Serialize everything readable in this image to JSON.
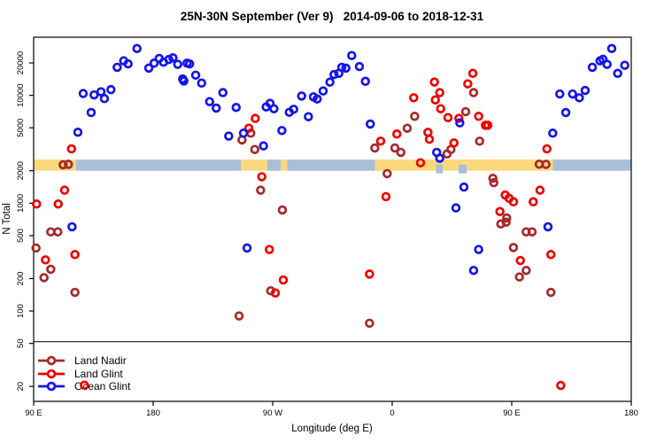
{
  "title": "25N-30N September (Ver 9)   2014-09-06 to 2018-12-31",
  "chart_data": {
    "type": "scatter",
    "title": "25N-30N September (Ver 9)   2014-09-06 to 2018-12-31",
    "xlabel": "Longitude (deg E)",
    "ylabel": "N Total",
    "x_axis": {
      "range_deg_eastward_from_90E": [
        90,
        540
      ],
      "ticks": [
        {
          "value": 90,
          "label": "90 E"
        },
        {
          "value": 180,
          "label": "180"
        },
        {
          "value": 270,
          "label": "90 W"
        },
        {
          "value": 360,
          "label": "0"
        },
        {
          "value": 450,
          "label": "90 E"
        },
        {
          "value": 540,
          "label": "180"
        }
      ]
    },
    "y_axis": {
      "scale": "log",
      "ticks": [
        20,
        50,
        100,
        200,
        500,
        1000,
        2000,
        5000,
        10000,
        20000
      ],
      "visible_range": [
        14,
        34600
      ]
    },
    "separator_value": 52,
    "band": {
      "description": "land-ocean strip along latitude band",
      "value_top": 2540,
      "value_bottom": 2000,
      "land_color": "#FBD87D",
      "ocean_color": "#A9BFD9",
      "segments": [
        {
          "from": 90,
          "to": 122,
          "type": "land"
        },
        {
          "from": 122,
          "to": 246,
          "type": "ocean"
        },
        {
          "from": 246,
          "to": 266,
          "type": "land"
        },
        {
          "from": 266,
          "to": 276,
          "type": "ocean"
        },
        {
          "from": 276,
          "to": 281,
          "type": "land"
        },
        {
          "from": 281,
          "to": 347,
          "type": "ocean"
        },
        {
          "from": 347,
          "to": 481,
          "type": "land"
        },
        {
          "from": 481,
          "to": 540,
          "type": "ocean"
        }
      ],
      "ocean_notches": [
        {
          "from": 393,
          "to": 398
        },
        {
          "from": 410,
          "to": 416
        }
      ]
    },
    "series": [
      {
        "name": "Land Nadir",
        "color": "#A52A2A",
        "points": [
          [
            91.8,
            384
          ],
          [
            97.8,
            204
          ],
          [
            102.9,
            542
          ],
          [
            102.9,
            244
          ],
          [
            108.2,
            542
          ],
          [
            112.2,
            2270
          ],
          [
            116.2,
            2290
          ],
          [
            121.1,
            149
          ],
          [
            244.7,
            90
          ],
          [
            246.9,
            3860
          ],
          [
            253.5,
            4460
          ],
          [
            256.5,
            3150
          ],
          [
            260.9,
            1320
          ],
          [
            268.5,
            154
          ],
          [
            277.3,
            865
          ],
          [
            342.9,
            77
          ],
          [
            346.9,
            3250
          ],
          [
            356.2,
            1880
          ],
          [
            362,
            3250
          ],
          [
            366.5,
            2960
          ],
          [
            371.3,
            4960
          ],
          [
            376.9,
            6390
          ],
          [
            401.3,
            2860
          ],
          [
            404.2,
            3150
          ],
          [
            415.3,
            7060
          ],
          [
            421.3,
            10600
          ],
          [
            425.8,
            3760
          ],
          [
            435.8,
            1700
          ],
          [
            436.5,
            1550
          ],
          [
            441.8,
            642
          ],
          [
            445.8,
            667
          ],
          [
            446.2,
            729
          ],
          [
            451.3,
            388
          ],
          [
            455.8,
            207
          ],
          [
            460.9,
            542
          ],
          [
            465.3,
            542
          ],
          [
            460.9,
            238
          ],
          [
            470.7,
            2300
          ],
          [
            475.8,
            2290
          ],
          [
            479.5,
            149
          ]
        ]
      },
      {
        "name": "Land Glint",
        "color": "#EE0000",
        "points": [
          [
            92.2,
            982
          ],
          [
            98.9,
            298
          ],
          [
            108.5,
            982
          ],
          [
            113.3,
            1320
          ],
          [
            118.5,
            3190
          ],
          [
            121.1,
            334
          ],
          [
            128.2,
            20.5
          ],
          [
            252,
            4960
          ],
          [
            256.9,
            6110
          ],
          [
            261.8,
            1760
          ],
          [
            267.5,
            372
          ],
          [
            272,
            147
          ],
          [
            278,
            194
          ],
          [
            342.9,
            220
          ],
          [
            351.3,
            3760
          ],
          [
            355.3,
            1150
          ],
          [
            363.5,
            4380
          ],
          [
            376.2,
            9500
          ],
          [
            381.3,
            2370
          ],
          [
            386.9,
            4540
          ],
          [
            388,
            3920
          ],
          [
            391.8,
            13300
          ],
          [
            392.5,
            9080
          ],
          [
            395.8,
            10600
          ],
          [
            396.5,
            7520
          ],
          [
            402,
            6220
          ],
          [
            406.5,
            3620
          ],
          [
            410.2,
            6110
          ],
          [
            416.9,
            12800
          ],
          [
            420.7,
            16000
          ],
          [
            425.1,
            6390
          ],
          [
            430.2,
            5280
          ],
          [
            432,
            5280
          ],
          [
            441.1,
            837
          ],
          [
            445.1,
            1190
          ],
          [
            448,
            1110
          ],
          [
            451.3,
            1030
          ],
          [
            456.5,
            294
          ],
          [
            466.2,
            1030
          ],
          [
            471.3,
            1320
          ],
          [
            476.5,
            3190
          ],
          [
            479.5,
            334
          ],
          [
            486.9,
            20.4
          ]
        ]
      },
      {
        "name": "Ocean Glint",
        "color": "#1414EE",
        "points": [
          [
            118.9,
            604
          ],
          [
            123.3,
            4550
          ],
          [
            127.3,
            10400
          ],
          [
            133.3,
            6930
          ],
          [
            135.5,
            10100
          ],
          [
            140.7,
            10800
          ],
          [
            143.3,
            9330
          ],
          [
            148.2,
            11300
          ],
          [
            152.9,
            18200
          ],
          [
            157.8,
            20900
          ],
          [
            161.1,
            19600
          ],
          [
            167.8,
            27200
          ],
          [
            176.7,
            17900
          ],
          [
            180.7,
            19900
          ],
          [
            184.5,
            22000
          ],
          [
            187.8,
            20300
          ],
          [
            191.8,
            21500
          ],
          [
            194.9,
            22300
          ],
          [
            198.5,
            19400
          ],
          [
            202.2,
            14200
          ],
          [
            203.1,
            13600
          ],
          [
            205.5,
            19900
          ],
          [
            207.5,
            19600
          ],
          [
            212,
            15400
          ],
          [
            216.5,
            13000
          ],
          [
            222.5,
            8750
          ],
          [
            227.5,
            7620
          ],
          [
            232.5,
            10600
          ],
          [
            236.9,
            4190
          ],
          [
            242.5,
            7730
          ],
          [
            248,
            4460
          ],
          [
            250.7,
            384
          ],
          [
            263.1,
            3400
          ],
          [
            265.1,
            7810
          ],
          [
            268,
            8430
          ],
          [
            270.9,
            7520
          ],
          [
            276.9,
            4720
          ],
          [
            282.5,
            6970
          ],
          [
            285.8,
            7430
          ],
          [
            291.8,
            9860
          ],
          [
            296.9,
            6340
          ],
          [
            300.7,
            9680
          ],
          [
            303.5,
            9260
          ],
          [
            308,
            10990
          ],
          [
            313.1,
            13270
          ],
          [
            316.2,
            15600
          ],
          [
            319.8,
            16000
          ],
          [
            322,
            18200
          ],
          [
            325.1,
            17900
          ],
          [
            329.5,
            23400
          ],
          [
            335.3,
            18500
          ],
          [
            339.8,
            13500
          ],
          [
            343.5,
            5420
          ],
          [
            393.5,
            2960
          ],
          [
            395.8,
            2610
          ],
          [
            408,
            904
          ],
          [
            410.9,
            5560
          ],
          [
            414,
            1410
          ],
          [
            421.3,
            238
          ],
          [
            425.1,
            372
          ],
          [
            477.3,
            604
          ],
          [
            480.9,
            4460
          ],
          [
            486.2,
            10300
          ],
          [
            490.7,
            6930
          ],
          [
            495.8,
            10300
          ],
          [
            500.9,
            9500
          ],
          [
            505.3,
            11100
          ],
          [
            510.7,
            18200
          ],
          [
            516.5,
            20900
          ],
          [
            518.7,
            21600
          ],
          [
            521.8,
            19400
          ],
          [
            525.3,
            27200
          ],
          [
            529.8,
            16000
          ],
          [
            535.1,
            19000
          ]
        ]
      }
    ]
  },
  "legend": {
    "items": [
      {
        "label": "Land Nadir",
        "color": "#A52A2A"
      },
      {
        "label": "Land Glint",
        "color": "#EE0000"
      },
      {
        "label": "Ocean Glint",
        "color": "#1414EE"
      }
    ]
  }
}
